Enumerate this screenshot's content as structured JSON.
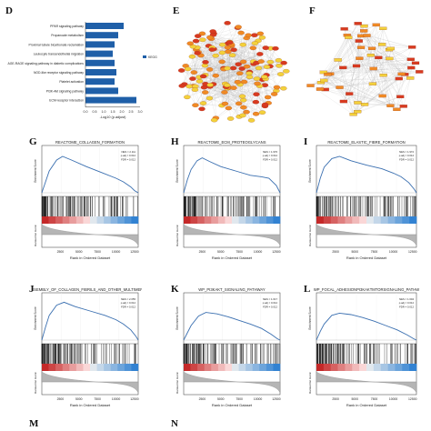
{
  "panel_labels": {
    "D": "D",
    "E": "E",
    "F": "F",
    "G": "G",
    "H": "H",
    "I": "I",
    "J": "J",
    "K": "K",
    "L": "L",
    "M": "M",
    "N": "N"
  },
  "colors": {
    "bar": "#1f5fa8",
    "curve": "#3a6fb0",
    "network_node_red": "#d83a20",
    "network_node_orange": "#f08a24",
    "network_node_yellow": "#f3d13b",
    "edge": "#b8b8b8"
  },
  "chart_data": [
    {
      "panel": "D",
      "type": "bar",
      "orientation": "horizontal",
      "categories": [
        "PPAR signaling pathway",
        "Propanoate metabolism",
        "Proximal tubule bicarbonate reclamation",
        "Leukocyte transendothelial migration",
        "AGE-RAGE signaling pathway in diabetic complications",
        "NOD-like receptor signaling pathway",
        "Platelet activation",
        "PI3K-Akt signaling pathway",
        "ECM-receptor interaction"
      ],
      "values": [
        2.1,
        1.8,
        1.6,
        1.5,
        1.6,
        1.7,
        1.6,
        1.8,
        2.8
      ],
      "xlabel": "-Log10 (p.adjust)",
      "xticks": [
        "0.0",
        "0.5",
        "1.0",
        "1.5",
        "2.0",
        "2.5",
        "3.0"
      ],
      "xlim": [
        0,
        3
      ],
      "legend": "KEGG",
      "legend_position": "right"
    },
    {
      "panel": "G",
      "type": "line",
      "title": "REACTOME_COLLAGEN_FORMATION",
      "ylabel": "Enrichment Score",
      "ylabel2": "Ranked list metric",
      "xlabel": "Rank in Ordered Dataset",
      "xticks": [
        "2500",
        "5000",
        "7500",
        "10000",
        "12500"
      ],
      "stats": [
        "NES = 2.111",
        "p.adj = 0.014",
        "FDR = 0.012"
      ],
      "x": [
        0,
        500,
        1000,
        2000,
        2800,
        4000,
        6000,
        8000,
        10000,
        11000,
        12000,
        12500,
        13000
      ],
      "y": [
        0,
        0.15,
        0.3,
        0.45,
        0.5,
        0.45,
        0.36,
        0.28,
        0.2,
        0.15,
        0.08,
        0.03,
        0
      ]
    },
    {
      "panel": "H",
      "type": "line",
      "title": "REACTOME_ECM_PROTEOGLYCANS",
      "ylabel": "Enrichment Score",
      "ylabel2": "Ranked list metric",
      "xlabel": "Rank in Ordered Dataset",
      "xticks": [
        "2500",
        "5000",
        "7500",
        "10000",
        "12500"
      ],
      "stats": [
        "NES = 1.976",
        "p.adj = 0.014",
        "FDR = 0.012"
      ],
      "x": [
        0,
        500,
        1000,
        1800,
        2500,
        3500,
        5000,
        7000,
        9000,
        10500,
        11500,
        12500,
        13000
      ],
      "y": [
        0,
        0.18,
        0.32,
        0.44,
        0.48,
        0.43,
        0.36,
        0.3,
        0.24,
        0.22,
        0.2,
        0.1,
        0
      ]
    },
    {
      "panel": "I",
      "type": "line",
      "title": "REACTOME_ELASTIC_FIBRE_FORMATION",
      "ylabel": "Enrichment Score",
      "ylabel2": "Ranked list metric",
      "xlabel": "Rank in Ordered Dataset",
      "xticks": [
        "2500",
        "5000",
        "7500",
        "10000",
        "12500"
      ],
      "stats": [
        "NES = 1.972",
        "p.adj = 0.014",
        "FDR = 0.012"
      ],
      "x": [
        0,
        500,
        1000,
        2000,
        3000,
        4500,
        6500,
        8500,
        10000,
        11000,
        12000,
        12700,
        13000
      ],
      "y": [
        0,
        0.2,
        0.35,
        0.47,
        0.5,
        0.44,
        0.38,
        0.33,
        0.27,
        0.22,
        0.14,
        0.05,
        0
      ]
    },
    {
      "panel": "J",
      "type": "line",
      "title": "REACTOME_ASSEMBLY_OF_COLLAGEN_FIBRILS_AND_OTHER_MULTIMERIC_STRUCTURES",
      "ylabel": "Enrichment Score",
      "ylabel2": "Ranked list metric",
      "xlabel": "Rank in Ordered Dataset",
      "xticks": [
        "2500",
        "5000",
        "7500",
        "10000",
        "12500"
      ],
      "stats": [
        "NES = 2.055",
        "p.adj = 0.014",
        "FDR = 0.012"
      ],
      "x": [
        0,
        500,
        1000,
        2000,
        3000,
        4500,
        6500,
        8500,
        10000,
        11000,
        12000,
        12700,
        13000
      ],
      "y": [
        0,
        0.18,
        0.34,
        0.48,
        0.52,
        0.46,
        0.4,
        0.34,
        0.28,
        0.22,
        0.14,
        0.05,
        0
      ]
    },
    {
      "panel": "K",
      "type": "line",
      "title": "WP_PI3KAKT_SIGNALING_PATHWAY",
      "ylabel": "Enrichment Score",
      "ylabel2": "Ranked list metric",
      "xlabel": "Rank in Ordered Dataset",
      "xticks": [
        "2500",
        "5000",
        "7500",
        "10000",
        "12500"
      ],
      "stats": [
        "NES = 1.617",
        "p.adj = 0.014",
        "FDR = 0.012"
      ],
      "x": [
        0,
        500,
        1000,
        2000,
        3000,
        4500,
        6000,
        7500,
        9000,
        10500,
        11800,
        12600,
        13000
      ],
      "y": [
        0,
        0.1,
        0.2,
        0.33,
        0.38,
        0.36,
        0.32,
        0.27,
        0.22,
        0.16,
        0.08,
        0.02,
        0
      ]
    },
    {
      "panel": "L",
      "type": "line",
      "title": "WP_FOCAL_ADHESIONPI3KAKTMTORSIGNALING_PATHW",
      "ylabel": "Enrichment Score",
      "ylabel2": "Ranked list metric",
      "xlabel": "Rank in Ordered Dataset",
      "xticks": [
        "2500",
        "5000",
        "7500",
        "10000",
        "12500"
      ],
      "stats": [
        "NES = 1.604",
        "p.adj = 0.014",
        "FDR = 0.012"
      ],
      "x": [
        0,
        500,
        1000,
        2000,
        3000,
        4500,
        6000,
        7500,
        9000,
        10500,
        11800,
        12600,
        13000
      ],
      "y": [
        0,
        0.12,
        0.22,
        0.34,
        0.37,
        0.35,
        0.31,
        0.26,
        0.2,
        0.14,
        0.07,
        0.02,
        0
      ]
    }
  ]
}
